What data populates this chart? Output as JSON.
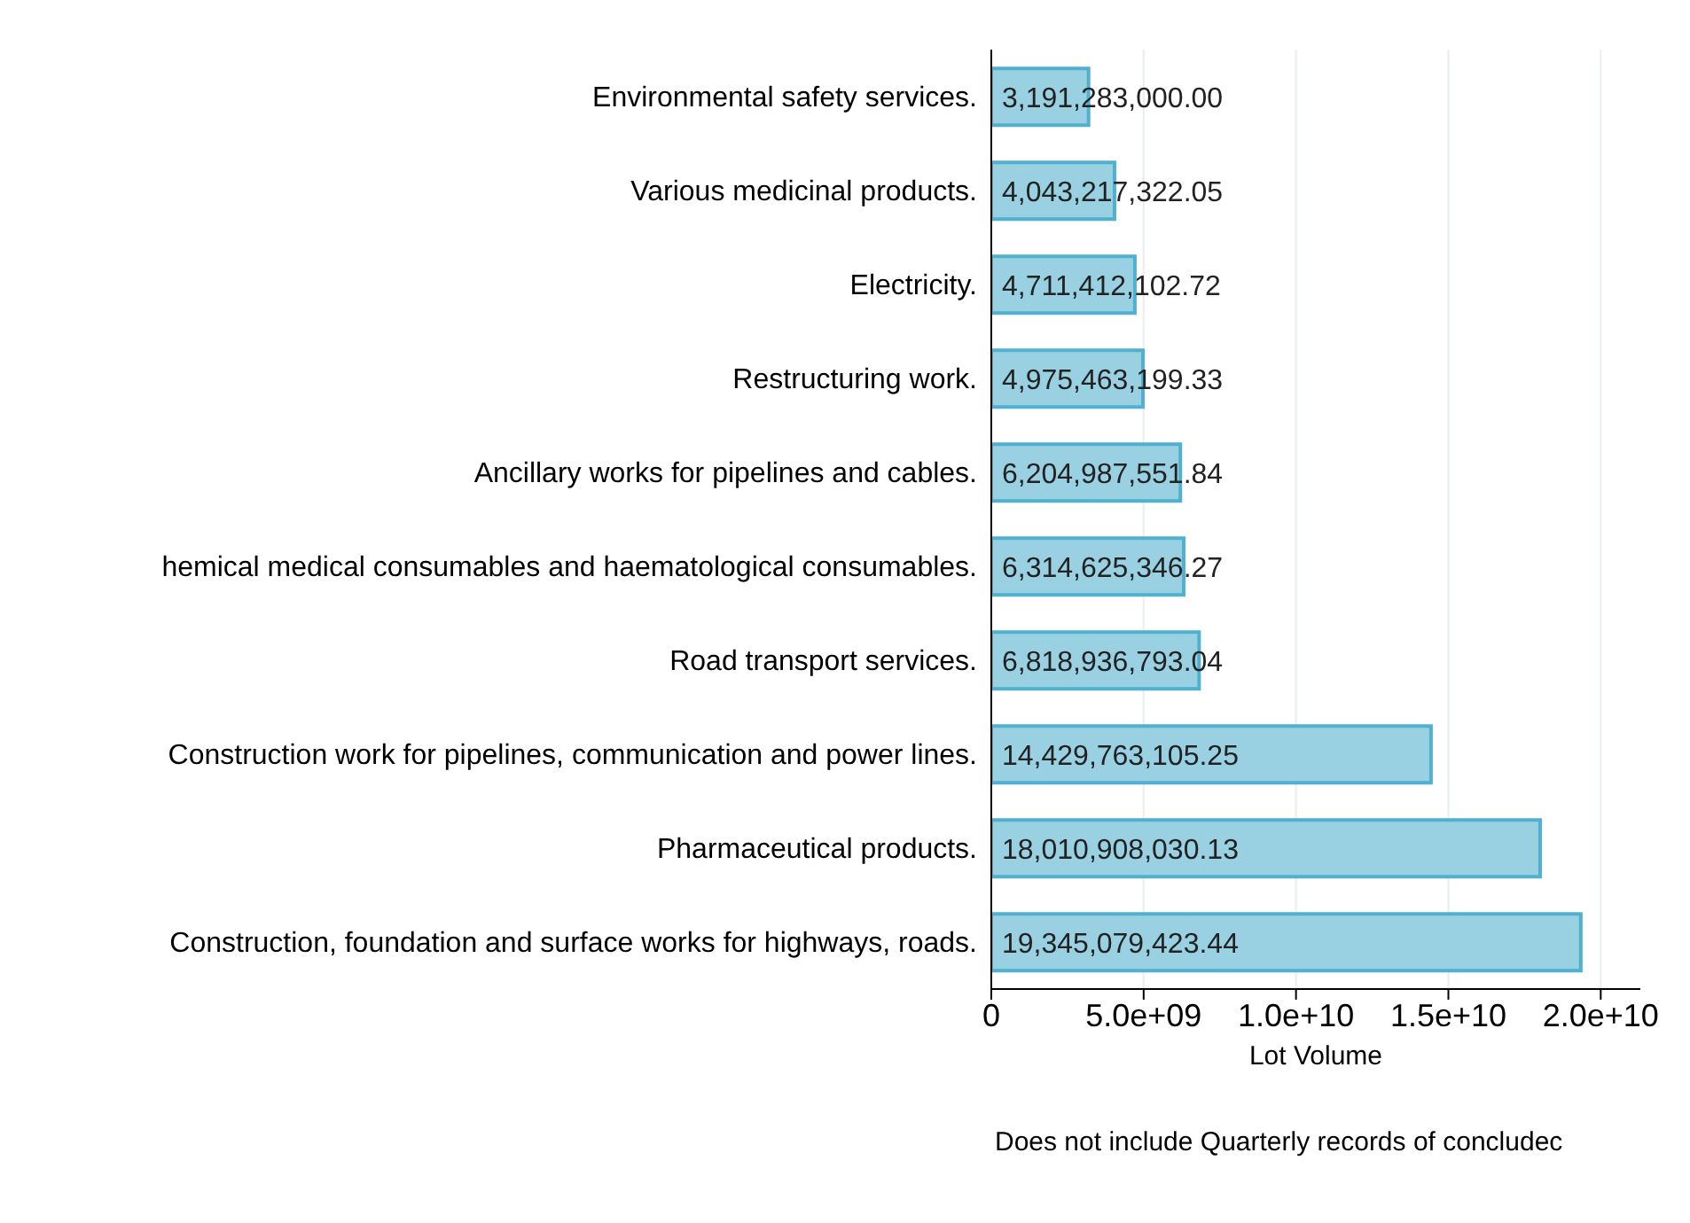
{
  "chart_data": {
    "type": "bar",
    "orientation": "horizontal",
    "xlabel": "Lot Volume",
    "categories": [
      "Environmental safety services.",
      "Various medicinal products.",
      "Electricity.",
      "Restructuring work.",
      "Ancillary works for pipelines and cables.",
      "hemical medical consumables and haematological consumables.",
      "Road transport services.",
      "Construction work for pipelines, communication and power lines.",
      "Pharmaceutical products.",
      "Construction, foundation and surface works for highways, roads."
    ],
    "values": [
      3191283000.0,
      4043217322.05,
      4711412102.72,
      4975463199.33,
      6204987551.84,
      6314625346.27,
      6818936793.04,
      14429763105.25,
      18010908030.13,
      19345079423.44
    ],
    "value_labels": [
      "3,191,283,000.00",
      "4,043,217,322.05",
      "4,711,412,102.72",
      "4,975,463,199.33",
      "6,204,987,551.84",
      "6,314,625,346.27",
      "6,818,936,793.04",
      "14,429,763,105.25",
      "18,010,908,030.13",
      "19,345,079,423.44"
    ],
    "color": "#99d1e3",
    "xlim": [
      0,
      21300000000
    ],
    "xticks": [
      0,
      {
        "value": 5000000000,
        "label": "5.0e+09"
      },
      {
        "value": 10000000000,
        "label": "1.0e+10"
      },
      {
        "value": 15000000000,
        "label": "1.5e+10"
      },
      {
        "value": 20000000000,
        "label": "2.0e+10"
      }
    ],
    "grid": "x",
    "annotations": [
      "Does not include Quarterly records of concludec"
    ]
  }
}
